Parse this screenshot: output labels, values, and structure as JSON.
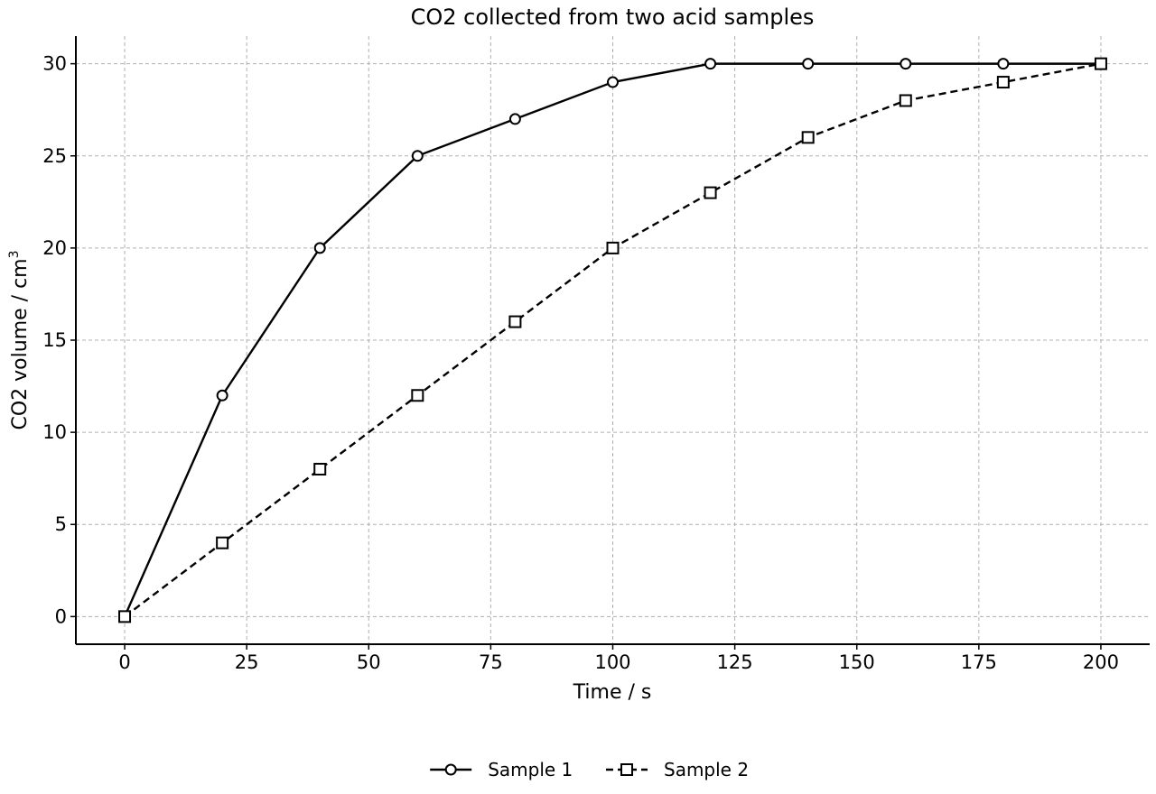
{
  "chart_data": {
    "type": "line",
    "title": "CO2 collected from two acid samples",
    "xlabel": "Time / s",
    "ylabel": "CO2 volume / cm",
    "ylabel_superscript": "3",
    "xlim": [
      -10,
      210
    ],
    "ylim": [
      -1.5,
      31.5
    ],
    "xticks": [
      0,
      25,
      50,
      75,
      100,
      125,
      150,
      175,
      200
    ],
    "yticks": [
      0,
      5,
      10,
      15,
      20,
      25,
      30
    ],
    "grid": true,
    "legend_position": "bottom-center",
    "x": [
      0,
      20,
      40,
      60,
      80,
      100,
      120,
      140,
      160,
      180,
      200
    ],
    "series": [
      {
        "name": "Sample 1",
        "values": [
          0,
          12,
          20,
          25,
          27,
          29,
          30,
          30,
          30,
          30,
          30
        ],
        "line_style": "solid",
        "marker": "circle",
        "color": "#000000"
      },
      {
        "name": "Sample 2",
        "values": [
          0,
          4,
          8,
          12,
          16,
          20,
          23,
          26,
          28,
          29,
          30
        ],
        "line_style": "dashed",
        "marker": "square",
        "color": "#000000"
      }
    ]
  }
}
